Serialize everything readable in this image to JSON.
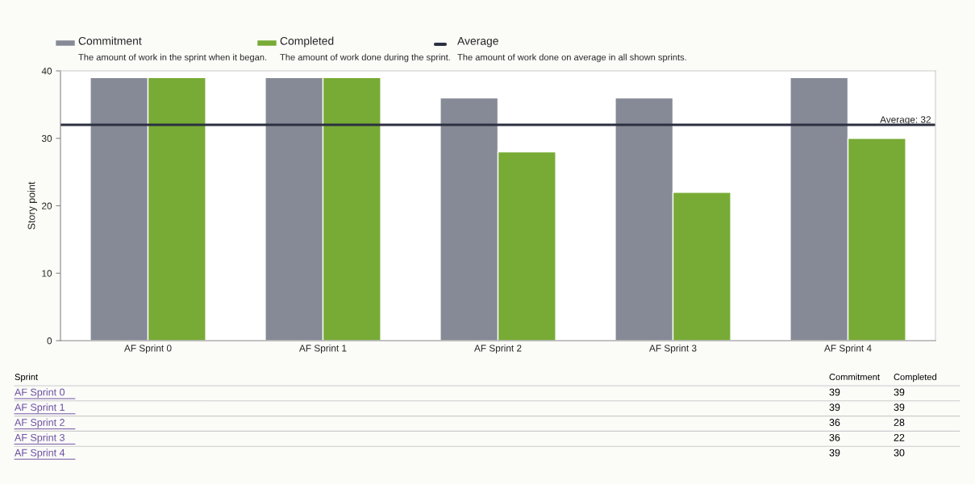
{
  "chart_data": [
    {
      "type": "bar",
      "ylabel": "Story point",
      "categories": [
        "AF Sprint 0",
        "AF Sprint 1",
        "AF Sprint 2",
        "AF Sprint 3",
        "AF Sprint 4"
      ],
      "series": [
        {
          "name": "Commitment",
          "color": "#868a96",
          "values": [
            39,
            39,
            36,
            36,
            39
          ]
        },
        {
          "name": "Completed",
          "color": "#77ab35",
          "values": [
            39,
            39,
            28,
            22,
            30
          ]
        }
      ],
      "ylim": [
        0,
        40
      ],
      "yticks": [
        0,
        10,
        20,
        30,
        40
      ],
      "grid": false,
      "legend": "top left",
      "ref_lines": [
        {
          "axis": "y",
          "value": 32,
          "label": "Average: 32",
          "color": "#2c3040",
          "line_style": "solid"
        }
      ],
      "annotations": [
        "The amount of work in the sprint when it began.",
        "The amount of work done during the sprint.",
        "Average",
        "The amount of work done on average in all shown sprints."
      ]
    },
    {
      "type": "other",
      "annotations": [
        "Sprint",
        "Commitment",
        "Completed",
        "AF Sprint 0",
        "39",
        "39",
        "AF Sprint 1",
        "39",
        "39",
        "AF Sprint 2",
        "36",
        "28",
        "AF Sprint 3",
        "36",
        "22",
        "AF Sprint 4",
        "39",
        "30"
      ]
    }
  ]
}
